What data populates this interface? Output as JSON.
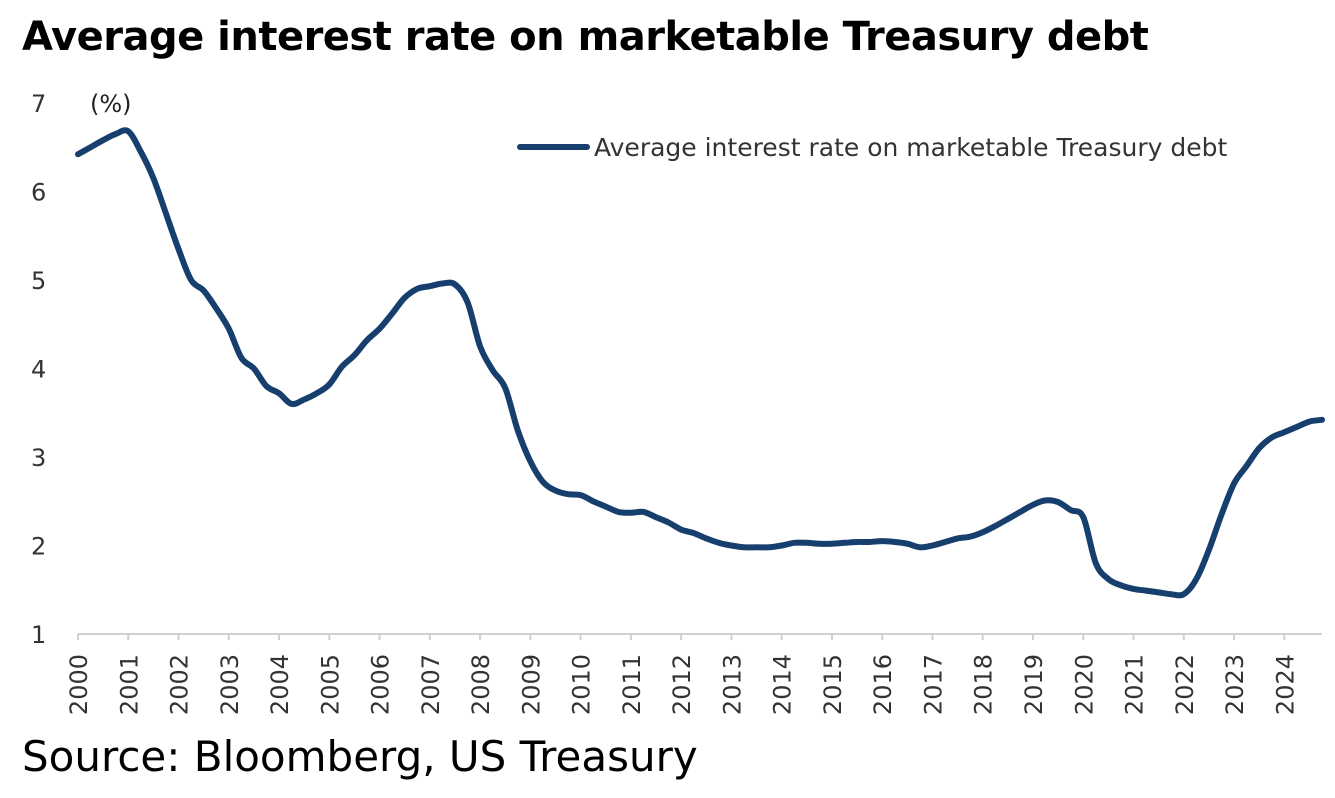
{
  "title": "Average interest rate on marketable Treasury debt",
  "source": "Source: Bloomberg, US Treasury",
  "chart_data": {
    "type": "line",
    "ylabel": "(%)",
    "ylim": [
      1,
      7
    ],
    "yticks": [
      "1",
      "2",
      "3",
      "4",
      "5",
      "6",
      "7"
    ],
    "xlim": [
      2000,
      2024.75
    ],
    "xticks": [
      "2000",
      "2001",
      "2002",
      "2003",
      "2004",
      "2005",
      "2006",
      "2007",
      "2008",
      "2009",
      "2010",
      "2011",
      "2012",
      "2013",
      "2014",
      "2015",
      "2016",
      "2017",
      "2018",
      "2019",
      "2020",
      "2021",
      "2022",
      "2023",
      "2024"
    ],
    "legend_position": "top-right",
    "line_color": "#163f6e",
    "series": [
      {
        "name": "Average interest rate on marketable Treasury debt",
        "x": [
          2000.0,
          2000.25,
          2000.5,
          2000.75,
          2001.0,
          2001.25,
          2001.5,
          2001.75,
          2002.0,
          2002.25,
          2002.5,
          2002.75,
          2003.0,
          2003.25,
          2003.5,
          2003.75,
          2004.0,
          2004.25,
          2004.5,
          2004.75,
          2005.0,
          2005.25,
          2005.5,
          2005.75,
          2006.0,
          2006.25,
          2006.5,
          2006.75,
          2007.0,
          2007.25,
          2007.5,
          2007.75,
          2008.0,
          2008.25,
          2008.5,
          2008.75,
          2009.0,
          2009.25,
          2009.5,
          2009.75,
          2010.0,
          2010.25,
          2010.5,
          2010.75,
          2011.0,
          2011.25,
          2011.5,
          2011.75,
          2012.0,
          2012.25,
          2012.5,
          2012.75,
          2013.0,
          2013.25,
          2013.5,
          2013.75,
          2014.0,
          2014.25,
          2014.5,
          2014.75,
          2015.0,
          2015.25,
          2015.5,
          2015.75,
          2016.0,
          2016.25,
          2016.5,
          2016.75,
          2017.0,
          2017.25,
          2017.5,
          2017.75,
          2018.0,
          2018.25,
          2018.5,
          2018.75,
          2019.0,
          2019.25,
          2019.5,
          2019.75,
          2020.0,
          2020.25,
          2020.5,
          2020.75,
          2021.0,
          2021.25,
          2021.5,
          2021.75,
          2022.0,
          2022.25,
          2022.5,
          2022.75,
          2023.0,
          2023.25,
          2023.5,
          2023.75,
          2024.0,
          2024.25,
          2024.5,
          2024.75
        ],
        "values": [
          6.42,
          6.5,
          6.58,
          6.65,
          6.68,
          6.45,
          6.15,
          5.75,
          5.35,
          5.0,
          4.88,
          4.68,
          4.45,
          4.12,
          4.0,
          3.8,
          3.72,
          3.6,
          3.65,
          3.72,
          3.82,
          4.02,
          4.15,
          4.32,
          4.45,
          4.62,
          4.8,
          4.9,
          4.93,
          4.96,
          4.95,
          4.75,
          4.25,
          3.98,
          3.78,
          3.3,
          2.95,
          2.72,
          2.62,
          2.58,
          2.57,
          2.5,
          2.44,
          2.38,
          2.37,
          2.38,
          2.32,
          2.26,
          2.18,
          2.14,
          2.08,
          2.03,
          2.0,
          1.98,
          1.98,
          1.98,
          2.0,
          2.03,
          2.03,
          2.02,
          2.02,
          2.03,
          2.04,
          2.04,
          2.05,
          2.04,
          2.02,
          1.98,
          2.0,
          2.04,
          2.08,
          2.1,
          2.15,
          2.22,
          2.3,
          2.38,
          2.46,
          2.51,
          2.49,
          2.4,
          2.32,
          1.8,
          1.62,
          1.55,
          1.51,
          1.49,
          1.47,
          1.45,
          1.45,
          1.62,
          1.95,
          2.35,
          2.7,
          2.9,
          3.1,
          3.22,
          3.28,
          3.34,
          3.4,
          3.42
        ]
      }
    ]
  }
}
